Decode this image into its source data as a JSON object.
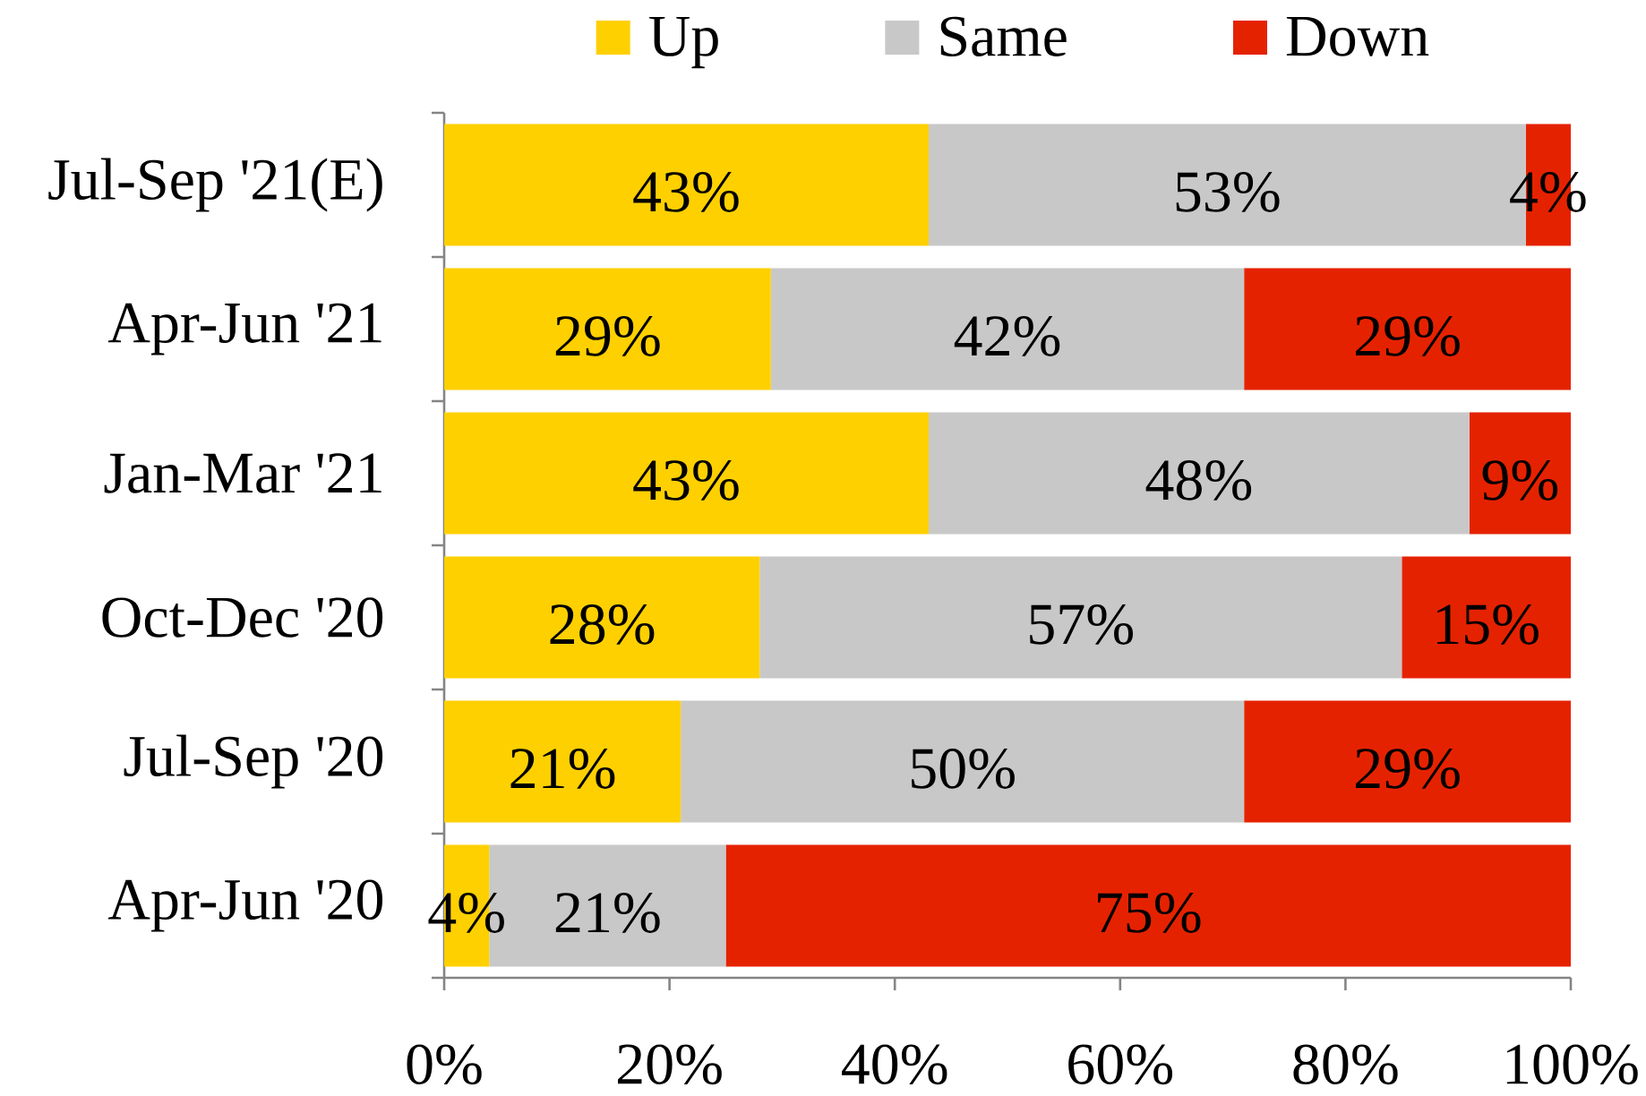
{
  "chart_data": {
    "type": "bar",
    "orientation": "horizontal",
    "stacked": true,
    "categories": [
      "Jul-Sep '21(E)",
      "Apr-Jun '21",
      "Jan-Mar '21",
      "Oct-Dec '20",
      "Jul-Sep '20",
      "Apr-Jun '20"
    ],
    "series": [
      {
        "name": "Up",
        "color": "#ffd000",
        "values": [
          43,
          29,
          43,
          28,
          21,
          4
        ],
        "value_labels": [
          "43%",
          "29%",
          "43%",
          "28%",
          "21%",
          "4%"
        ]
      },
      {
        "name": "Same",
        "color": "#c8c8c8",
        "values": [
          53,
          42,
          48,
          57,
          50,
          21
        ],
        "value_labels": [
          "53%",
          "42%",
          "48%",
          "57%",
          "50%",
          "21%"
        ]
      },
      {
        "name": "Down",
        "color": "#e52200",
        "values": [
          4,
          29,
          9,
          15,
          29,
          75
        ],
        "value_labels": [
          "4%",
          "29%",
          "9%",
          "15%",
          "29%",
          "75%"
        ]
      }
    ],
    "xlim": [
      0,
      100
    ],
    "xticks": [
      {
        "value": 0,
        "label": "0%"
      },
      {
        "value": 20,
        "label": "20%"
      },
      {
        "value": 40,
        "label": "40%"
      },
      {
        "value": 60,
        "label": "60%"
      },
      {
        "value": 80,
        "label": "80%"
      },
      {
        "value": 100,
        "label": "100%"
      }
    ],
    "legend": "top"
  }
}
